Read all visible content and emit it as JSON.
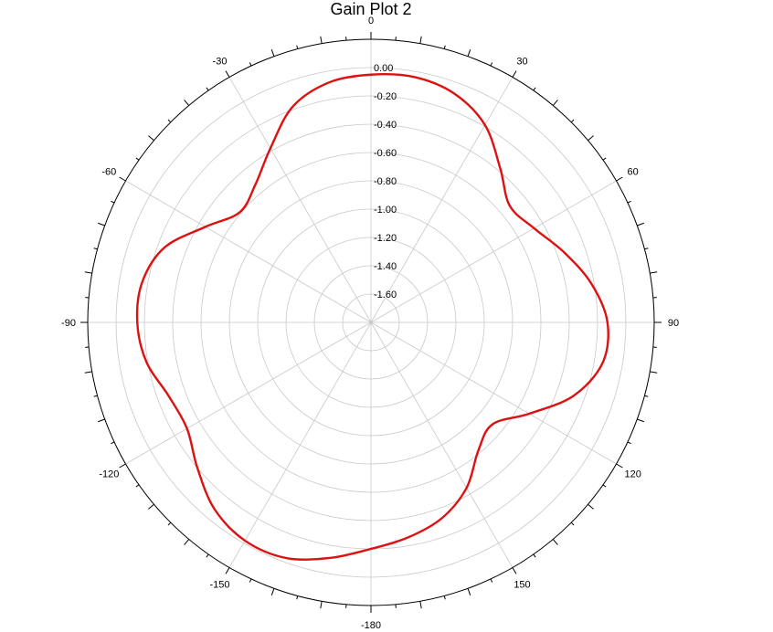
{
  "chart_data": {
    "type": "polar-line",
    "title": "Gain Plot 2",
    "theta_labels": [
      "0",
      "30",
      "60",
      "90",
      "120",
      "150",
      "-180",
      "-150",
      "-120",
      "-90",
      "-60",
      "-30"
    ],
    "theta_values": [
      0,
      30,
      60,
      90,
      120,
      150,
      180,
      210,
      240,
      270,
      300,
      330
    ],
    "r_labels": [
      "0.00",
      "-0.20",
      "-0.40",
      "-0.60",
      "-0.80",
      "-1.00",
      "-1.20",
      "-1.40",
      "-1.60"
    ],
    "r_values": [
      0.0,
      -0.2,
      -0.4,
      -0.6,
      -0.8,
      -1.0,
      -1.2,
      -1.4,
      -1.6
    ],
    "r_range": [
      -1.8,
      0.2
    ],
    "grid": true,
    "series": [
      {
        "color": "#dd1111",
        "theta": [
          0,
          10,
          20,
          30,
          40,
          50,
          60,
          70,
          80,
          90,
          100,
          110,
          120,
          130,
          140,
          150,
          160,
          170,
          180,
          190,
          200,
          210,
          220,
          230,
          240,
          250,
          260,
          270,
          280,
          290,
          300,
          310,
          320,
          330,
          340,
          350
        ],
        "r": [
          -0.05,
          -0.04,
          -0.08,
          -0.19,
          -0.38,
          -0.52,
          -0.47,
          -0.35,
          -0.22,
          -0.13,
          -0.14,
          -0.28,
          -0.51,
          -0.68,
          -0.62,
          -0.45,
          -0.33,
          -0.26,
          -0.2,
          -0.11,
          -0.03,
          -0.02,
          -0.08,
          -0.2,
          -0.3,
          -0.28,
          -0.19,
          -0.15,
          -0.16,
          -0.25,
          -0.45,
          -0.59,
          -0.53,
          -0.38,
          -0.18,
          -0.08
        ]
      }
    ]
  }
}
